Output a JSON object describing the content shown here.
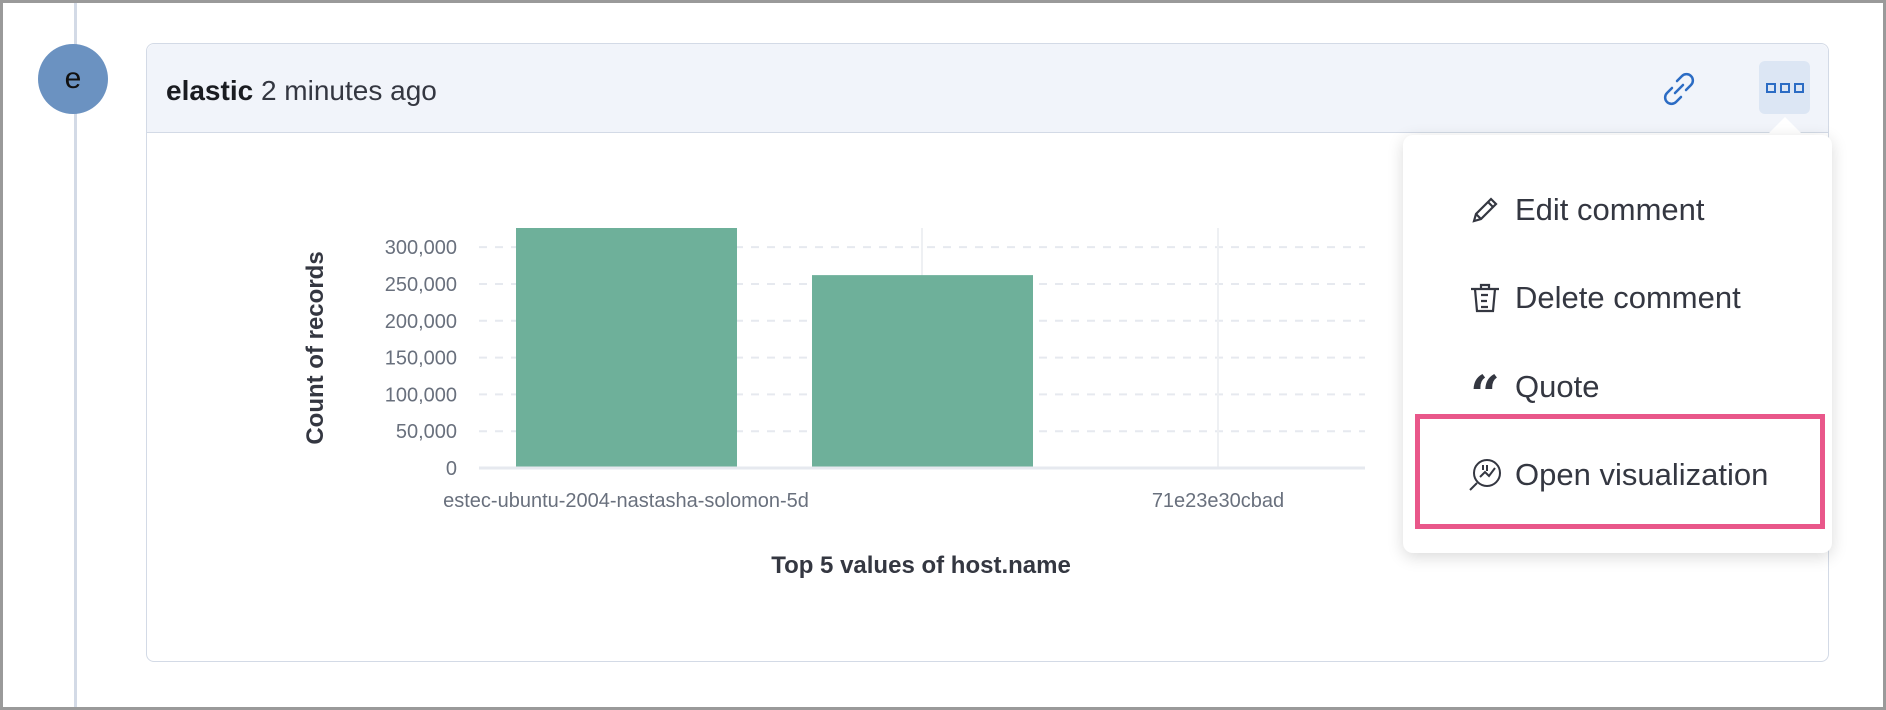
{
  "avatar": {
    "initial": "e",
    "color": "#6b92c1"
  },
  "comment": {
    "author": "elastic",
    "time": " 2 minutes ago",
    "link_icon": "link-icon",
    "more_icon": "boxes-horizontal-icon"
  },
  "menu": {
    "items": [
      {
        "label": "Edit comment",
        "icon": "pencil-icon"
      },
      {
        "label": "Delete comment",
        "icon": "trash-icon"
      },
      {
        "label": "Quote",
        "icon": "quote-icon"
      },
      {
        "label": "Open visualization",
        "icon": "visualize-app-icon",
        "highlighted": true
      }
    ],
    "highlight_color": "#e9578a"
  },
  "chart_data": {
    "type": "bar",
    "categories": [
      "estec-ubuntu-2004-nastasha-solomon-5d",
      "",
      "71e23e30cbad"
    ],
    "values": [
      326000,
      262000,
      null
    ],
    "xlabel": "Top 5 values of host.name",
    "ylabel": "Count of records",
    "yticks": [
      "0",
      "50,000",
      "100,000",
      "150,000",
      "200,000",
      "250,000",
      "300,000"
    ],
    "ylim": [
      0,
      326000
    ],
    "grid": true,
    "bar_color": "#6eb09a"
  }
}
